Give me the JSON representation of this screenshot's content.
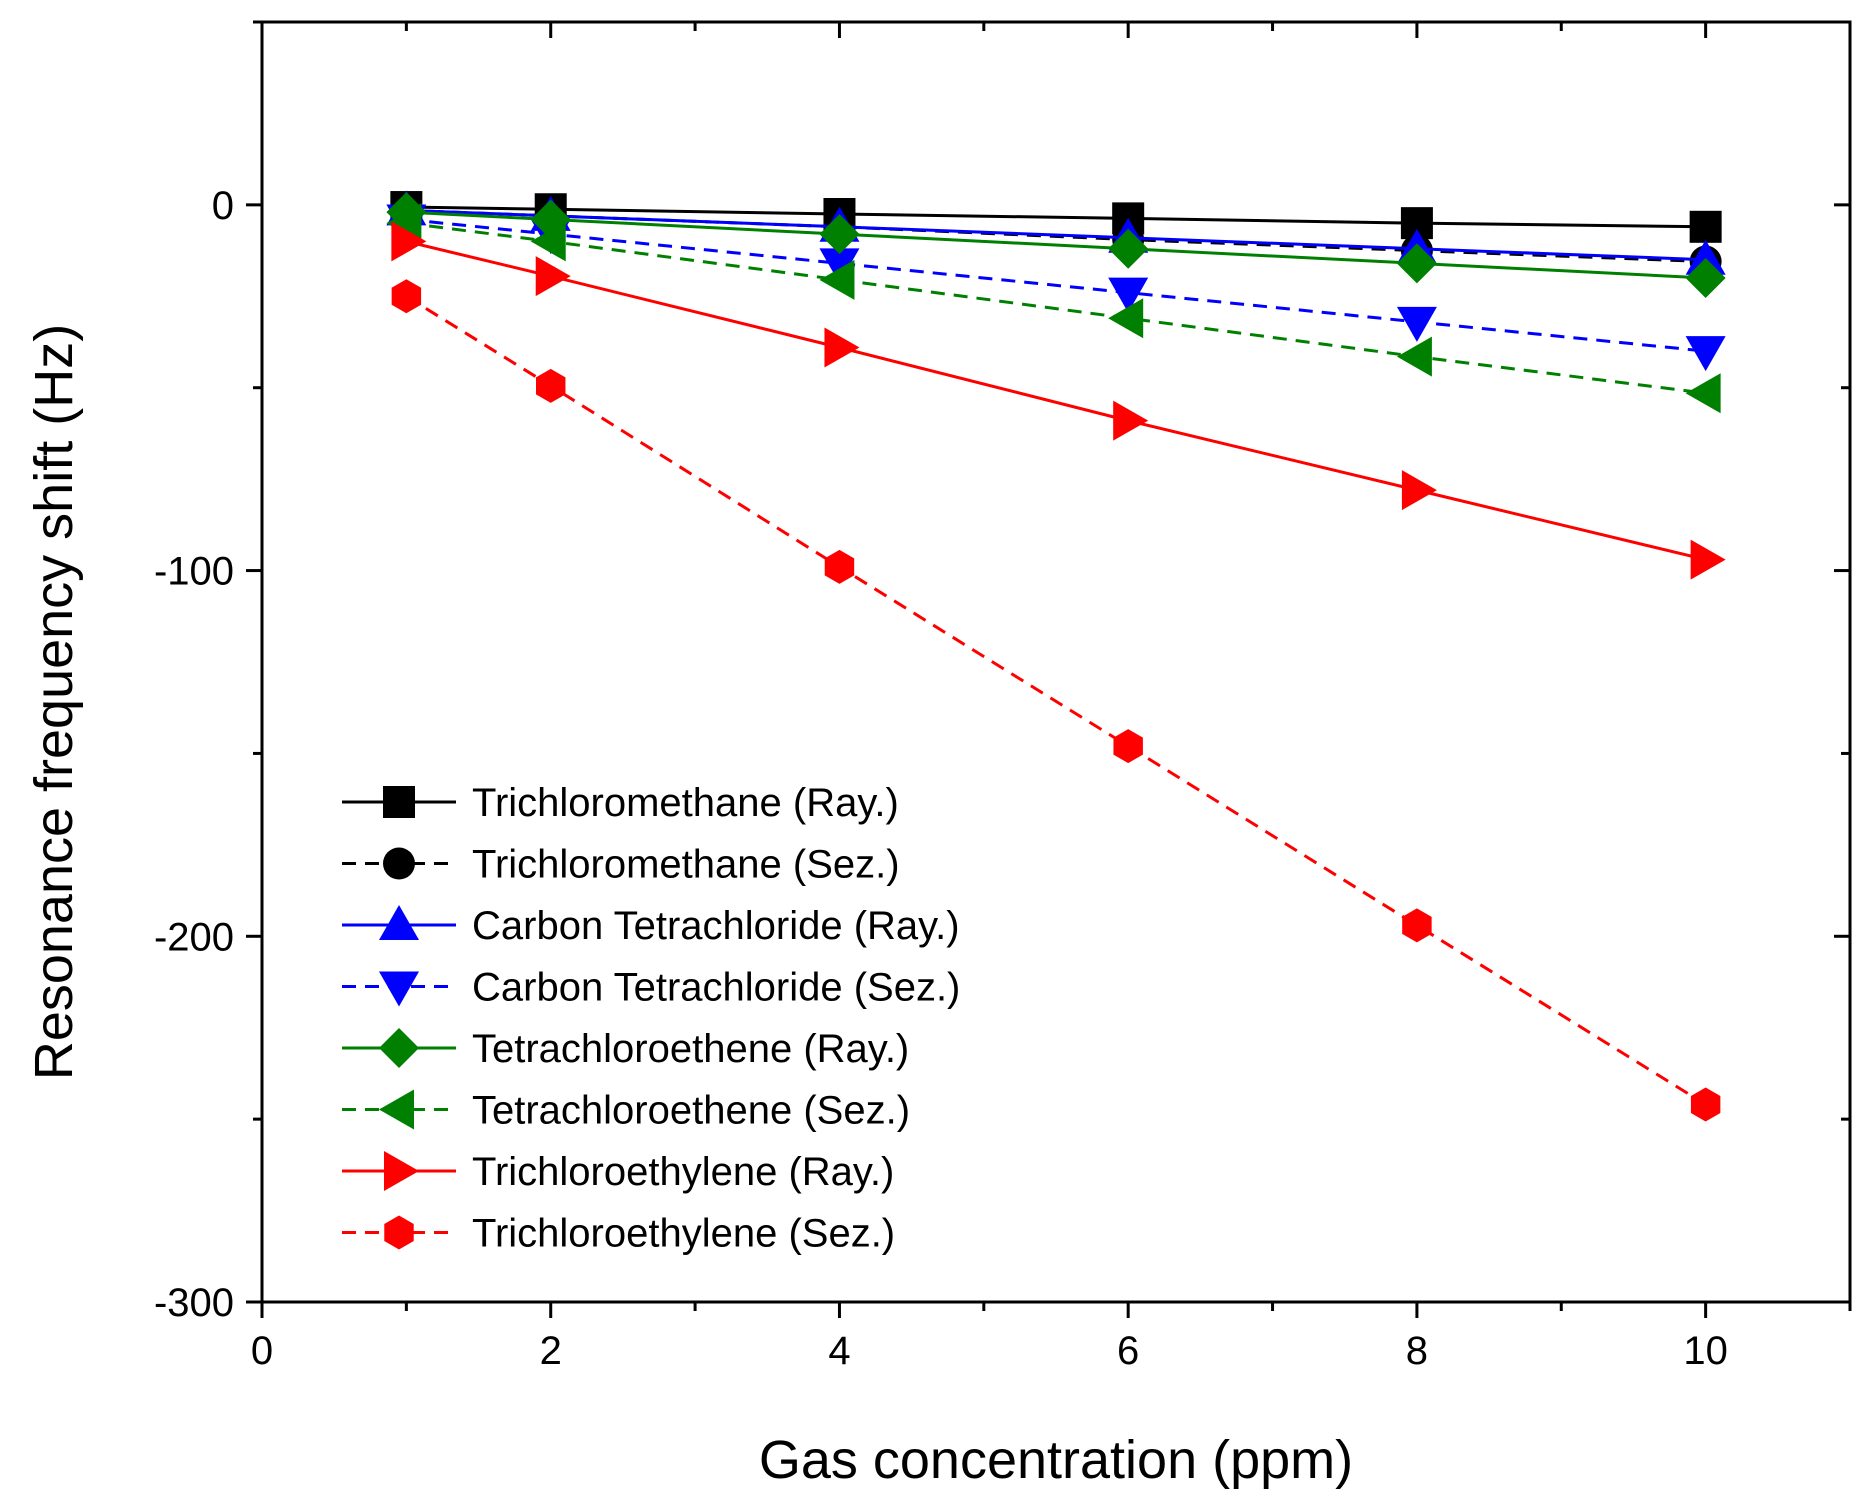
{
  "chart_data": {
    "type": "scatter",
    "title": "",
    "xlabel": "Gas concentration (ppm)",
    "ylabel": "Resonance frequency shift (Hz)",
    "xlim": [
      0,
      11
    ],
    "ylim": [
      -300,
      50
    ],
    "x_ticks": [
      0,
      2,
      4,
      6,
      8,
      10
    ],
    "y_ticks": [
      0,
      -100,
      -200,
      -300
    ],
    "x_tick_labels": [
      "0",
      "2",
      "4",
      "6",
      "8",
      "10"
    ],
    "y_tick_labels": [
      "0",
      "-100",
      "-200",
      "-300"
    ],
    "grid": false,
    "legend_position": "bottom-left",
    "x": [
      1,
      2,
      4,
      6,
      8,
      10
    ],
    "series": [
      {
        "name": "Trichloromethane (Ray.)",
        "color": "#000000",
        "line": "solid",
        "marker": "square",
        "values": [
          -0.6,
          -1.2,
          -2.5,
          -3.7,
          -5.0,
          -6.0
        ]
      },
      {
        "name": "Trichloromethane (Sez.)",
        "color": "#000000",
        "line": "dashed",
        "marker": "circle",
        "values": [
          -1.5,
          -3.0,
          -6.0,
          -9.5,
          -12.5,
          -15.5
        ]
      },
      {
        "name": "Carbon Tetrachloride (Ray.)",
        "color": "#0000ff",
        "line": "solid",
        "marker": "triangle-up",
        "values": [
          -1.5,
          -3.0,
          -6.0,
          -9.0,
          -12.0,
          -15.0
        ]
      },
      {
        "name": "Carbon Tetrachloride (Sez.)",
        "color": "#0000ff",
        "line": "dashed",
        "marker": "triangle-down",
        "values": [
          -4.0,
          -8.0,
          -16.0,
          -24.0,
          -32.0,
          -40.0
        ]
      },
      {
        "name": "Tetrachloroethene (Ray.)",
        "color": "#008000",
        "line": "solid",
        "marker": "diamond",
        "values": [
          -2.0,
          -4.0,
          -8.0,
          -12.0,
          -16.0,
          -20.0
        ]
      },
      {
        "name": "Tetrachloroethene (Sez.)",
        "color": "#008000",
        "line": "dashed",
        "marker": "triangle-left",
        "values": [
          -5.0,
          -10.0,
          -20.5,
          -31.0,
          -41.5,
          -51.5
        ]
      },
      {
        "name": "Trichloroethylene (Ray.)",
        "color": "#ff0000",
        "line": "solid",
        "marker": "triangle-right",
        "values": [
          -10.0,
          -19.5,
          -39.0,
          -59.0,
          -78.0,
          -97.0
        ]
      },
      {
        "name": "Trichloroethylene  (Sez.)",
        "color": "#ff0000",
        "line": "dashed",
        "marker": "hexagon",
        "values": [
          -25.0,
          -49.5,
          -99.0,
          -148.0,
          -197.0,
          -246.0
        ]
      }
    ]
  }
}
